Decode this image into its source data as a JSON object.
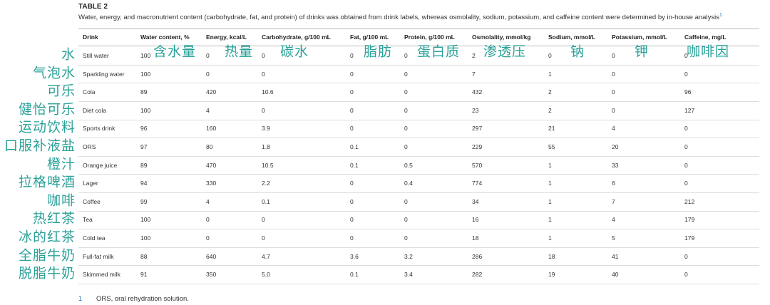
{
  "title": "TABLE 2",
  "caption": "Water, energy, and macronutrient content (carbohydrate, fat, and protein) of drinks was obtained from drink labels, whereas osmolality, sodium, potassium, and caffeine content were determined by in-house analysis",
  "caption_note": "1",
  "table": {
    "header": [
      "Drink",
      "Water content, %",
      "Energy, kcal/L",
      "Carbohydrate, g/100 mL",
      "Fat, g/100 mL",
      "Protein, g/100 mL",
      "Osmolality, mmol/kg",
      "Sodium, mmol/L",
      "Potassium, mmol/L",
      "Caffeine, mg/L"
    ],
    "rows": [
      [
        "Still water",
        "100",
        "0",
        "0",
        "0",
        "0",
        "2",
        "0",
        "0",
        "0"
      ],
      [
        "Sparkling water",
        "100",
        "0",
        "0",
        "0",
        "0",
        "7",
        "1",
        "0",
        "0"
      ],
      [
        "Cola",
        "89",
        "420",
        "10.6",
        "0",
        "0",
        "432",
        "2",
        "0",
        "96"
      ],
      [
        "Diet cola",
        "100",
        "4",
        "0",
        "0",
        "0",
        "23",
        "2",
        "0",
        "127"
      ],
      [
        "Sports drink",
        "96",
        "160",
        "3.9",
        "0",
        "0",
        "297",
        "21",
        "4",
        "0"
      ],
      [
        "ORS",
        "97",
        "80",
        "1.8",
        "0.1",
        "0",
        "229",
        "55",
        "20",
        "0"
      ],
      [
        "Orange juice",
        "89",
        "470",
        "10.5",
        "0.1",
        "0.5",
        "570",
        "1",
        "33",
        "0"
      ],
      [
        "Lager",
        "94",
        "330",
        "2.2",
        "0",
        "0.4",
        "774",
        "1",
        "6",
        "0"
      ],
      [
        "Coffee",
        "99",
        "4",
        "0.1",
        "0",
        "0",
        "34",
        "1",
        "7",
        "212"
      ],
      [
        "Tea",
        "100",
        "0",
        "0",
        "0",
        "0",
        "16",
        "1",
        "4",
        "179"
      ],
      [
        "Cold tea",
        "100",
        "0",
        "0",
        "0",
        "0",
        "18",
        "1",
        "5",
        "179"
      ],
      [
        "Full-fat milk",
        "88",
        "640",
        "4.7",
        "3.6",
        "3.2",
        "286",
        "18",
        "41",
        "0"
      ],
      [
        "Skimmed milk",
        "91",
        "350",
        "5.0",
        "0.1",
        "3.4",
        "282",
        "19",
        "40",
        "0"
      ]
    ]
  },
  "annotations": {
    "rows": [
      "水",
      "气泡水",
      "可乐",
      "健怡可乐",
      "运动饮料",
      "口服补液盐",
      "橙汁",
      "拉格啤酒",
      "咖啡",
      "热红茶",
      "冰的红茶",
      "全脂牛奶",
      "脱脂牛奶"
    ],
    "columns": [
      "含水量",
      "热量",
      "碳水",
      "脂肪",
      "蛋白质",
      "渗透压",
      "钠",
      "钾",
      "咖啡因"
    ]
  },
  "footnote": {
    "marker": "1",
    "text": "ORS, oral rehydration solution."
  }
}
